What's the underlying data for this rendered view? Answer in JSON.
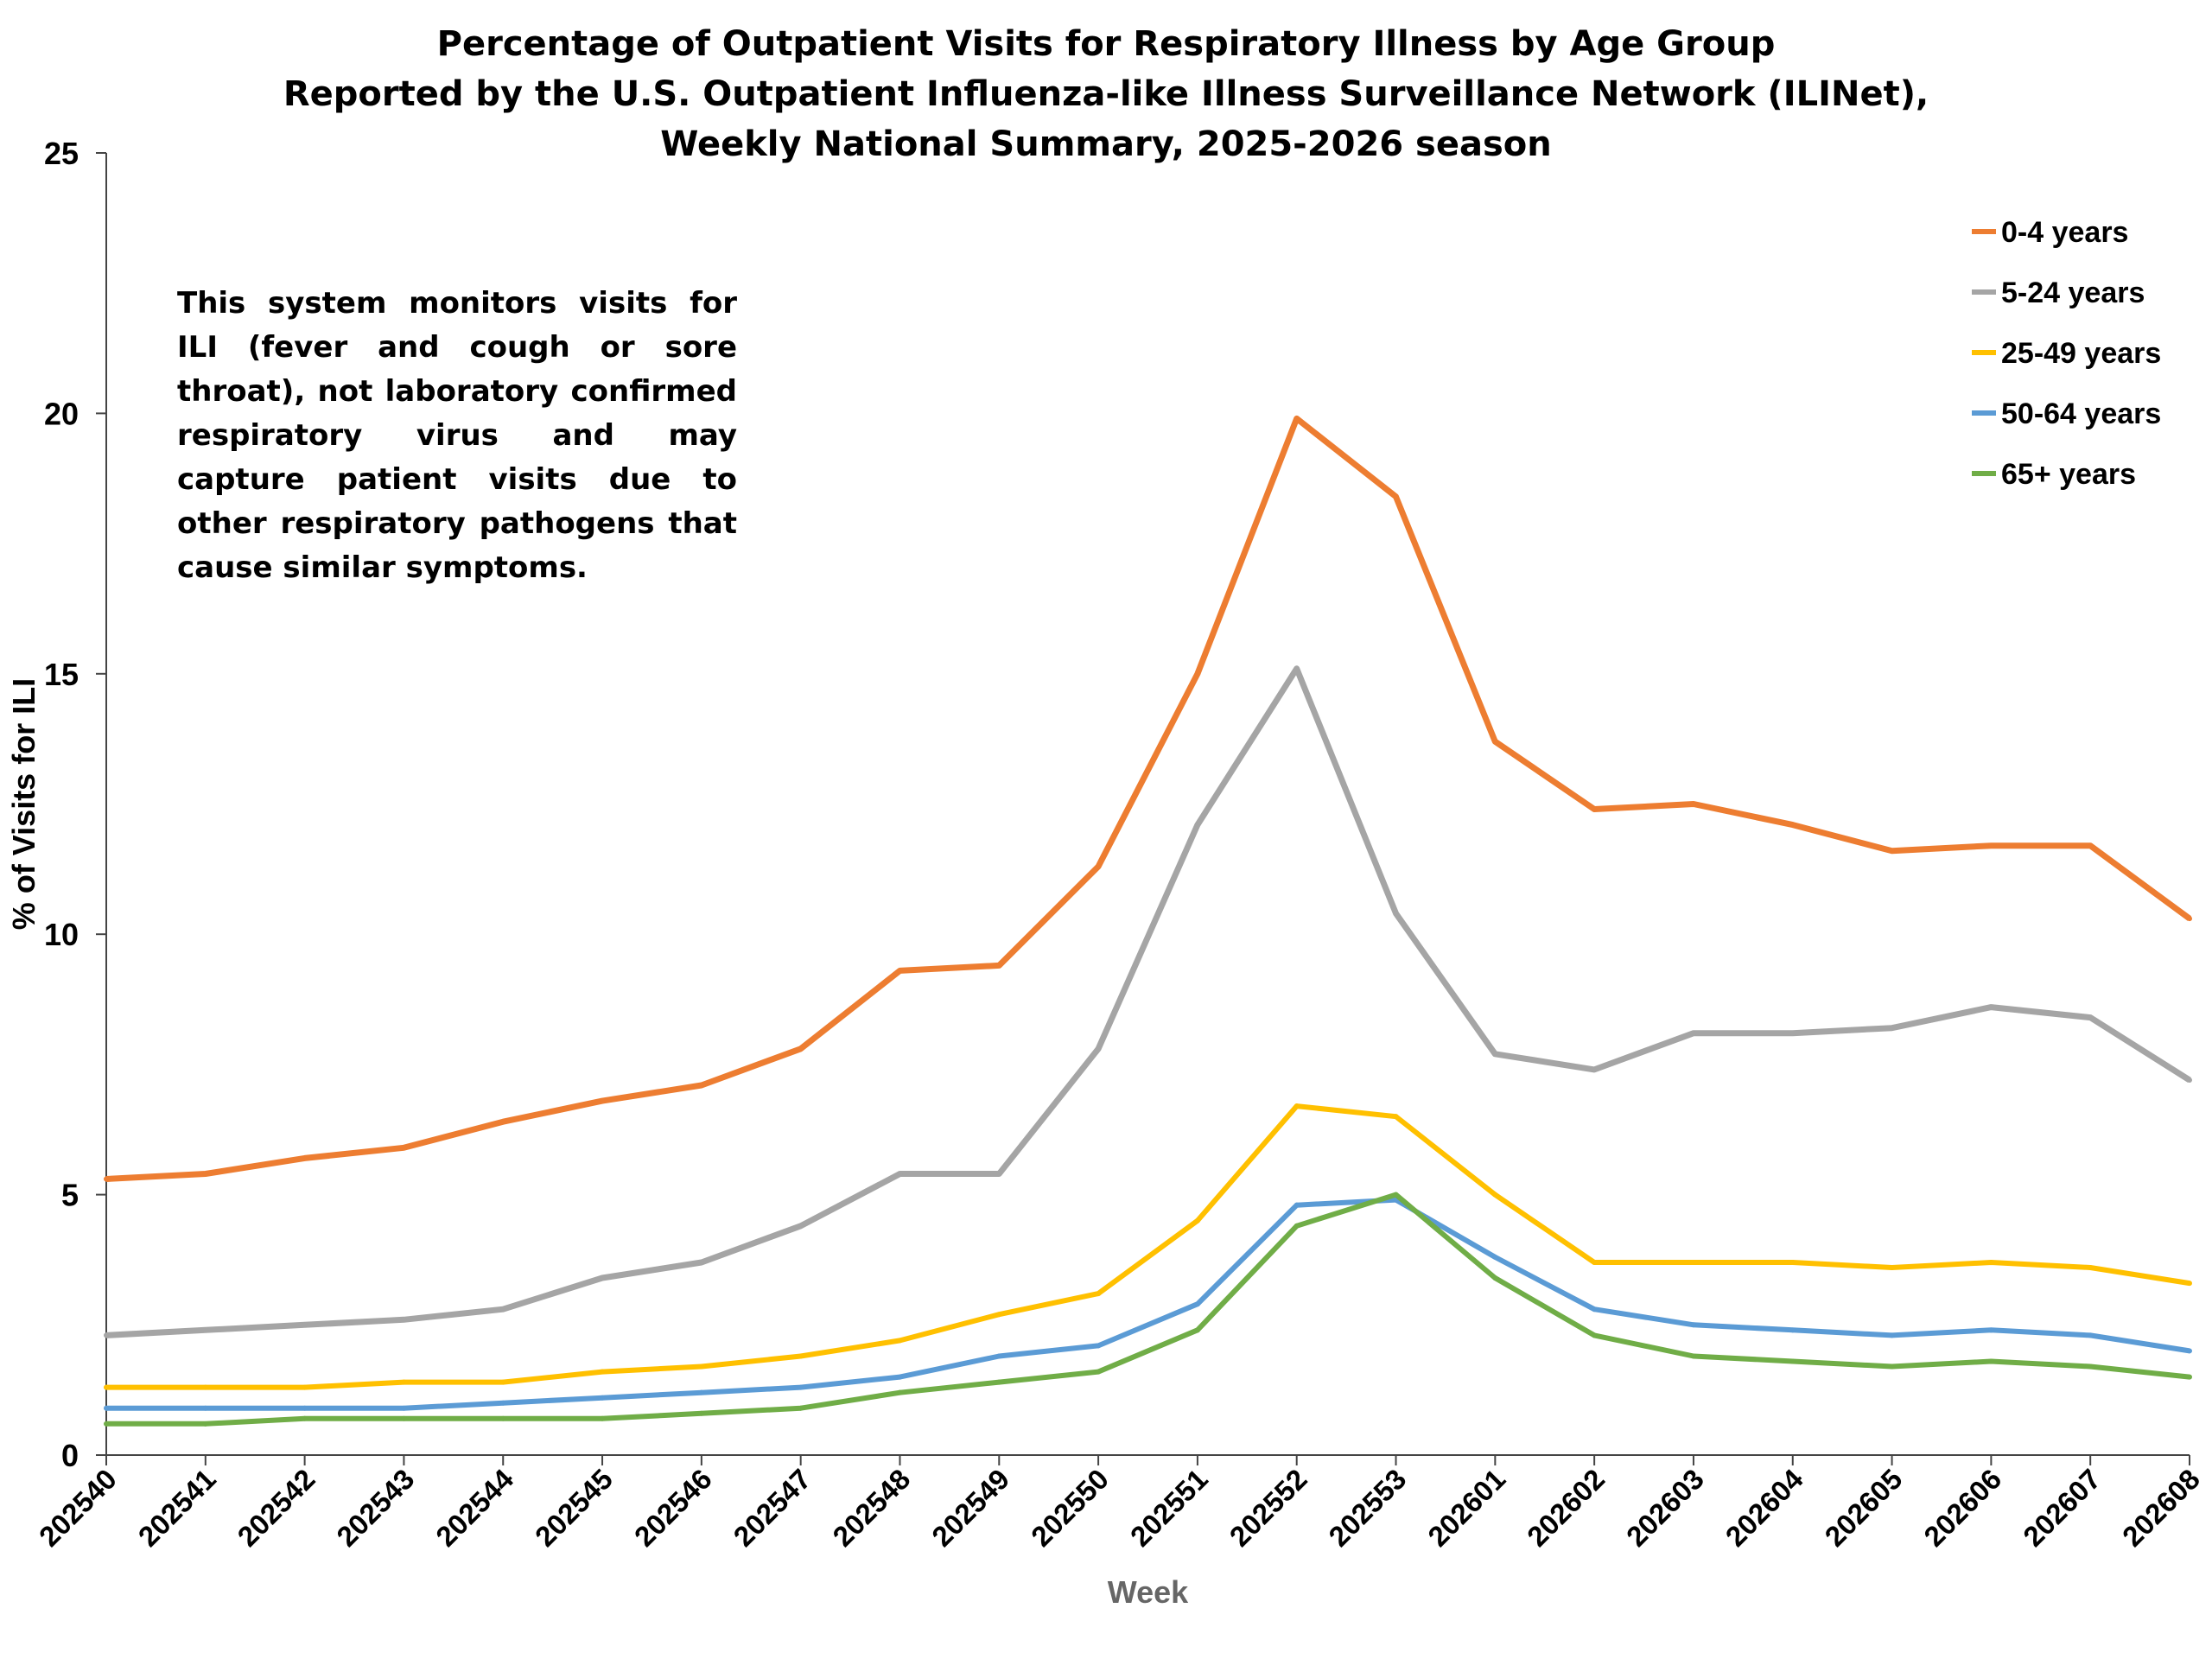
{
  "chart_data": {
    "type": "line",
    "title": [
      "Percentage of Outpatient Visits for Respiratory Illness by Age Group",
      "Reported by the U.S. Outpatient Influenza-like Illness Surveillance Network (ILINet),",
      "Weekly National Summary, 2025-2026 season"
    ],
    "xlabel": "Week",
    "ylabel": "% of Visits for ILI",
    "ylim": [
      0,
      25
    ],
    "yticks": [
      0,
      5,
      10,
      15,
      20,
      25
    ],
    "grid": false,
    "legend": "top-right",
    "annotation": "This system monitors visits for ILI (fever and cough or sore throat), not laboratory confirmed respiratory virus and may capture patient visits due to other respiratory pathogens that cause similar symptoms.",
    "categories": [
      "202540",
      "202541",
      "202542",
      "202543",
      "202544",
      "202545",
      "202546",
      "202547",
      "202548",
      "202549",
      "202550",
      "202551",
      "202552",
      "202553",
      "202601",
      "202602",
      "202603",
      "202604",
      "202605",
      "202606",
      "202607",
      "202608"
    ],
    "series": [
      {
        "name": "0-4 years",
        "color": "#ED7D31",
        "values": [
          5.3,
          5.4,
          5.7,
          5.9,
          6.4,
          6.8,
          7.1,
          7.8,
          9.3,
          9.4,
          11.3,
          15.0,
          19.9,
          18.4,
          13.7,
          12.4,
          12.5,
          12.1,
          11.6,
          11.7,
          11.7,
          10.3
        ]
      },
      {
        "name": "5-24 years",
        "color": "#A5A5A5",
        "values": [
          2.3,
          2.4,
          2.5,
          2.6,
          2.8,
          3.4,
          3.7,
          4.4,
          5.4,
          5.4,
          7.8,
          12.1,
          15.1,
          10.4,
          7.7,
          7.4,
          8.1,
          8.1,
          8.2,
          8.6,
          8.4,
          7.2
        ]
      },
      {
        "name": "25-49 years",
        "color": "#FFC000",
        "values": [
          1.3,
          1.3,
          1.3,
          1.4,
          1.4,
          1.6,
          1.7,
          1.9,
          2.2,
          2.7,
          3.1,
          4.5,
          6.7,
          6.5,
          5.0,
          3.7,
          3.7,
          3.7,
          3.6,
          3.7,
          3.6,
          3.3
        ]
      },
      {
        "name": "50-64 years",
        "color": "#5B9BD5",
        "values": [
          0.9,
          0.9,
          0.9,
          0.9,
          1.0,
          1.1,
          1.2,
          1.3,
          1.5,
          1.9,
          2.1,
          2.9,
          4.8,
          4.9,
          3.8,
          2.8,
          2.5,
          2.4,
          2.3,
          2.4,
          2.3,
          2.0
        ]
      },
      {
        "name": "65+ years",
        "color": "#70AD47",
        "values": [
          0.6,
          0.6,
          0.7,
          0.7,
          0.7,
          0.7,
          0.8,
          0.9,
          1.2,
          1.4,
          1.6,
          2.4,
          4.4,
          5.0,
          3.4,
          2.3,
          1.9,
          1.8,
          1.7,
          1.8,
          1.7,
          1.5
        ]
      }
    ]
  }
}
